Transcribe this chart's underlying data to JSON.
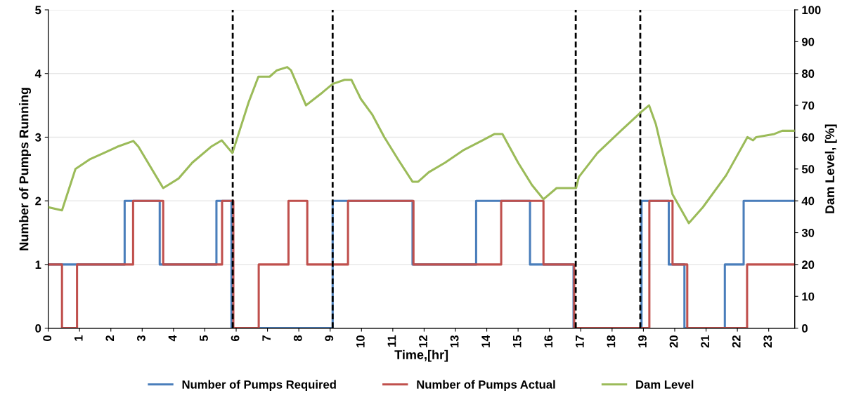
{
  "chart_data": {
    "type": "step",
    "xlabel": "Time,[hr]",
    "ylabel": "Number of Pumps Running",
    "y2label": "Dam Level, [%]",
    "xlim": [
      0,
      23.83
    ],
    "xticks": [
      0,
      1,
      2,
      3,
      4,
      5,
      6,
      7,
      8,
      9,
      10,
      11,
      12,
      13,
      14,
      15,
      16,
      17,
      18,
      19,
      20,
      21,
      22,
      23
    ],
    "ylim": [
      0,
      5
    ],
    "yticks": [
      0,
      1,
      2,
      3,
      4,
      5
    ],
    "y2lim": [
      0,
      100
    ],
    "y2ticks": [
      0,
      10,
      20,
      30,
      40,
      50,
      60,
      70,
      80,
      90,
      100
    ],
    "grid": "y",
    "legend": "bottom",
    "series": [
      {
        "name": "Number of Pumps Required",
        "color": "#4a7ebb",
        "x": [
          0,
          2.44,
          3.56,
          5.37,
          5.85,
          9.08,
          11.63,
          13.66,
          15.38,
          16.77,
          18.94,
          19.81,
          20.31,
          21.6,
          22.2,
          23.83
        ],
        "values": [
          1,
          2,
          1,
          2,
          0,
          2,
          1,
          2,
          1,
          0,
          2,
          1,
          0,
          1,
          2,
          2
        ]
      },
      {
        "name": "Number of Pumps Actual",
        "color": "#c0504d",
        "x": [
          0,
          0.44,
          0.92,
          2.71,
          3.67,
          5.55,
          5.91,
          6.72,
          7.67,
          8.27,
          9.57,
          11.66,
          14.46,
          15.81,
          16.79,
          19.19,
          19.93,
          20.4,
          22.31,
          23.83
        ],
        "values": [
          1,
          0,
          1,
          2,
          1,
          2,
          0,
          1,
          2,
          1,
          2,
          1,
          2,
          1,
          0,
          2,
          1,
          0,
          1,
          1
        ]
      },
      {
        "name": "Dam Level",
        "color": "#9bbb59",
        "type": "line",
        "axis": "y2",
        "x": [
          0,
          0.44,
          0.87,
          1.32,
          1.77,
          2.21,
          2.72,
          2.88,
          3.67,
          4.16,
          4.6,
          5.2,
          5.54,
          5.88,
          6.4,
          6.71,
          7.07,
          7.3,
          7.63,
          7.75,
          8.23,
          8.49,
          8.75,
          9.08,
          9.16,
          9.46,
          9.68,
          9.98,
          10.35,
          10.73,
          11.17,
          11.63,
          11.81,
          12.15,
          12.67,
          13.27,
          13.87,
          14.25,
          14.5,
          15.0,
          15.44,
          15.81,
          16.23,
          16.85,
          16.94,
          17.53,
          18.28,
          18.94,
          19.18,
          19.4,
          19.93,
          20.45,
          20.9,
          21.64,
          22.32,
          22.5,
          22.6,
          23.18,
          23.43,
          23.81
        ],
        "values": [
          38,
          37,
          50,
          53,
          55,
          57,
          58.8,
          57,
          44,
          47,
          52,
          57,
          59,
          55,
          71,
          79,
          79,
          81,
          82,
          81,
          70,
          72,
          74,
          76.7,
          77,
          78,
          78,
          72,
          67,
          60,
          53,
          46,
          46,
          49,
          52,
          56,
          59,
          61,
          61,
          52,
          45,
          40.5,
          44,
          44,
          47.5,
          55,
          62,
          68,
          70,
          64,
          42,
          33,
          38,
          48,
          60,
          59,
          60,
          61,
          62,
          62
        ]
      }
    ],
    "ref_lines": [
      {
        "axis": "x",
        "value": 5.89,
        "color": "#000000",
        "line_style": "dashed"
      },
      {
        "axis": "x",
        "value": 9.08,
        "color": "#000000",
        "line_style": "dashed"
      },
      {
        "axis": "x",
        "value": 16.84,
        "color": "#000000",
        "line_style": "dashed"
      },
      {
        "axis": "x",
        "value": 18.9,
        "color": "#000000",
        "line_style": "dashed"
      }
    ]
  }
}
